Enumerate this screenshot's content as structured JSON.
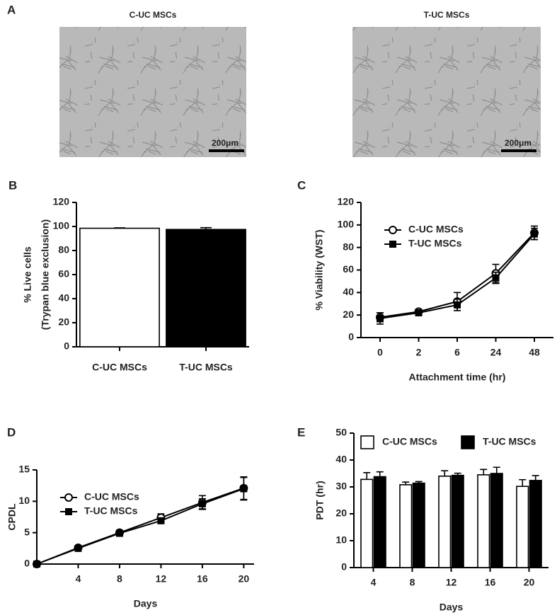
{
  "panel_a": {
    "label": "A",
    "images": [
      {
        "title": "C-UC MSCs",
        "scale_bar": "200μm"
      },
      {
        "title": "T-UC MSCs",
        "scale_bar": "200μm"
      }
    ]
  },
  "chart_data": [
    {
      "type": "bar",
      "panel_label": "B",
      "ylabel": [
        "% Live cells",
        "(Trypan blue exclusion)"
      ],
      "categories": [
        "C-UC MSCs",
        "T-UC MSCs"
      ],
      "values": [
        98.5,
        97.5
      ],
      "errors": [
        0.4,
        1.5
      ],
      "colors": [
        "#ffffff",
        "#000000"
      ],
      "ylim": [
        0,
        120
      ],
      "yticks": [
        0,
        20,
        40,
        60,
        80,
        100,
        120
      ]
    },
    {
      "type": "line",
      "panel_label": "C",
      "ylabel": "% Viability (WST)",
      "xlabel": "Attachment time (hr)",
      "categories": [
        "0",
        "2",
        "6",
        "24",
        "48"
      ],
      "series": [
        {
          "name": "C-UC MSCs",
          "color": "#000000",
          "marker": "open-circle",
          "values": [
            18,
            23,
            32,
            57,
            93
          ],
          "errors": [
            4,
            2,
            8,
            8,
            6
          ]
        },
        {
          "name": "T-UC MSCs",
          "color": "#000000",
          "marker": "filled-square",
          "values": [
            17,
            22,
            29,
            53,
            92
          ],
          "errors": [
            5,
            2,
            5,
            5,
            5
          ]
        }
      ],
      "ylim": [
        0,
        120
      ],
      "yticks": [
        0,
        20,
        40,
        60,
        80,
        100,
        120
      ],
      "legend": "upper left"
    },
    {
      "type": "line",
      "panel_label": "D",
      "ylabel": "CPDL",
      "xlabel": "Days",
      "x": [
        0,
        4,
        8,
        12,
        16,
        20
      ],
      "series": [
        {
          "name": "C-UC MSCs",
          "color": "#000000",
          "marker": "open-circle",
          "values": [
            0,
            2.6,
            5.0,
            7.4,
            9.8,
            12.1
          ],
          "errors": [
            0,
            0.2,
            0.2,
            0.6,
            1.1,
            1.8
          ]
        },
        {
          "name": "T-UC MSCs",
          "color": "#000000",
          "marker": "filled-square",
          "values": [
            0,
            2.5,
            4.9,
            6.9,
            9.6,
            12.0
          ],
          "errors": [
            0,
            0.2,
            0.2,
            0.3,
            0.8,
            1.8
          ]
        }
      ],
      "xlim": [
        0,
        21
      ],
      "xticks": [
        4,
        8,
        12,
        16,
        20
      ],
      "ylim": [
        0,
        15
      ],
      "yticks": [
        0,
        5,
        10,
        15
      ],
      "legend": "upper left"
    },
    {
      "type": "bar",
      "panel_label": "E",
      "ylabel": "PDT (hr)",
      "xlabel": "Days",
      "categories": [
        "4",
        "8",
        "12",
        "16",
        "20"
      ],
      "series": [
        {
          "name": "C-UC MSCs",
          "color": "#ffffff",
          "values": [
            32.8,
            30.8,
            34.0,
            34.5,
            30.2
          ],
          "errors": [
            2.5,
            1.0,
            2.0,
            2.0,
            2.5
          ]
        },
        {
          "name": "T-UC MSCs",
          "color": "#000000",
          "values": [
            33.8,
            31.4,
            34.3,
            35.0,
            32.4
          ],
          "errors": [
            1.8,
            0.6,
            0.8,
            2.3,
            1.8
          ]
        }
      ],
      "ylim": [
        0,
        50
      ],
      "yticks": [
        0,
        10,
        20,
        30,
        40,
        50
      ],
      "legend": "top"
    }
  ]
}
